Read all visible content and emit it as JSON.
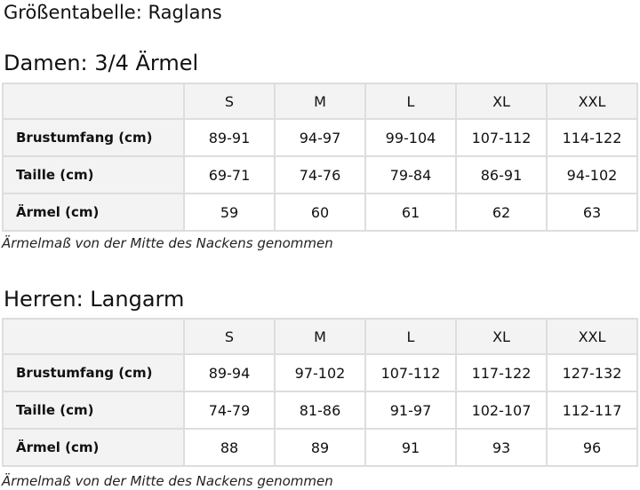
{
  "title": "Größentabelle: Raglans",
  "tables": [
    {
      "heading": "Damen: 3/4 Ärmel",
      "sizes": [
        "S",
        "M",
        "L",
        "XL",
        "XXL"
      ],
      "rows": [
        {
          "label": "Brustumfang (cm)",
          "values": [
            "89-91",
            "94-97",
            "99-104",
            "107-112",
            "114-122"
          ]
        },
        {
          "label": "Taille (cm)",
          "values": [
            "69-71",
            "74-76",
            "79-84",
            "86-91",
            "94-102"
          ]
        },
        {
          "label": "Ärmel (cm)",
          "values": [
            "59",
            "60",
            "61",
            "62",
            "63"
          ]
        }
      ],
      "note": "Ärmelmaß von der Mitte des Nackens genommen"
    },
    {
      "heading": "Herren: Langarm",
      "sizes": [
        "S",
        "M",
        "L",
        "XL",
        "XXL"
      ],
      "rows": [
        {
          "label": "Brustumfang (cm)",
          "values": [
            "89-94",
            "97-102",
            "107-112",
            "117-122",
            "127-132"
          ]
        },
        {
          "label": "Taille (cm)",
          "values": [
            "74-79",
            "81-86",
            "91-97",
            "102-107",
            "112-117"
          ]
        },
        {
          "label": "Ärmel (cm)",
          "values": [
            "88",
            "89",
            "91",
            "93",
            "96"
          ]
        }
      ],
      "note": "Ärmelmaß von der Mitte des Nackens genommen"
    }
  ],
  "colors": {
    "header_bg": "#f3f3f3",
    "border": "#dddddd"
  }
}
